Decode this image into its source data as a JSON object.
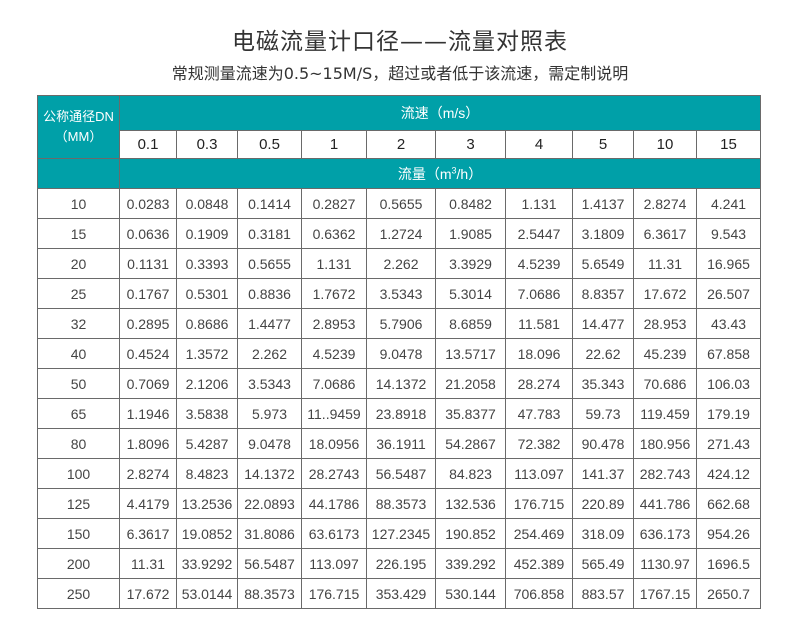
{
  "title": "电磁流量计口径——流量对照表",
  "subtitle": "常规测量流速为0.5~15M/S，超过或者低于该流速，需定制说明",
  "colors": {
    "header_bg": "#00a0a8",
    "header_text": "#ffffff",
    "border": "#6a6a6a"
  },
  "table": {
    "dn_header_line1": "公称通径DN",
    "dn_header_line2": "（MM）",
    "velocity_header": "流速（m/s）",
    "flow_header_prefix": "流量（m",
    "flow_header_sup": "3",
    "flow_header_suffix": "/h）",
    "velocities": [
      "0.1",
      "0.3",
      "0.5",
      "1",
      "2",
      "3",
      "4",
      "5",
      "10",
      "15"
    ],
    "rows": [
      {
        "dn": "10",
        "values": [
          "0.0283",
          "0.0848",
          "0.1414",
          "0.2827",
          "0.5655",
          "0.8482",
          "1.131",
          "1.4137",
          "2.8274",
          "4.241"
        ]
      },
      {
        "dn": "15",
        "values": [
          "0.0636",
          "0.1909",
          "0.3181",
          "0.6362",
          "1.2724",
          "1.9085",
          "2.5447",
          "3.1809",
          "6.3617",
          "9.543"
        ]
      },
      {
        "dn": "20",
        "values": [
          "0.1131",
          "0.3393",
          "0.5655",
          "1.131",
          "2.262",
          "3.3929",
          "4.5239",
          "5.6549",
          "11.31",
          "16.965"
        ]
      },
      {
        "dn": "25",
        "values": [
          "0.1767",
          "0.5301",
          "0.8836",
          "1.7672",
          "3.5343",
          "5.3014",
          "7.0686",
          "8.8357",
          "17.672",
          "26.507"
        ]
      },
      {
        "dn": "32",
        "values": [
          "0.2895",
          "0.8686",
          "1.4477",
          "2.8953",
          "5.7906",
          "8.6859",
          "11.581",
          "14.477",
          "28.953",
          "43.43"
        ]
      },
      {
        "dn": "40",
        "values": [
          "0.4524",
          "1.3572",
          "2.262",
          "4.5239",
          "9.0478",
          "13.5717",
          "18.096",
          "22.62",
          "45.239",
          "67.858"
        ]
      },
      {
        "dn": "50",
        "values": [
          "0.7069",
          "2.1206",
          "3.5343",
          "7.0686",
          "14.1372",
          "21.2058",
          "28.274",
          "35.343",
          "70.686",
          "106.03"
        ]
      },
      {
        "dn": "65",
        "values": [
          "1.1946",
          "3.5838",
          "5.973",
          "11..9459",
          "23.8918",
          "35.8377",
          "47.783",
          "59.73",
          "119.459",
          "179.19"
        ]
      },
      {
        "dn": "80",
        "values": [
          "1.8096",
          "5.4287",
          "9.0478",
          "18.0956",
          "36.1911",
          "54.2867",
          "72.382",
          "90.478",
          "180.956",
          "271.43"
        ]
      },
      {
        "dn": "100",
        "values": [
          "2.8274",
          "8.4823",
          "14.1372",
          "28.2743",
          "56.5487",
          "84.823",
          "113.097",
          "141.37",
          "282.743",
          "424.12"
        ]
      },
      {
        "dn": "125",
        "values": [
          "4.4179",
          "13.2536",
          "22.0893",
          "44.1786",
          "88.3573",
          "132.536",
          "176.715",
          "220.89",
          "441.786",
          "662.68"
        ]
      },
      {
        "dn": "150",
        "values": [
          "6.3617",
          "19.0852",
          "31.8086",
          "63.6173",
          "127.2345",
          "190.852",
          "254.469",
          "318.09",
          "636.173",
          "954.26"
        ]
      },
      {
        "dn": "200",
        "values": [
          "11.31",
          "33.9292",
          "56.5487",
          "113.097",
          "226.195",
          "339.292",
          "452.389",
          "565.49",
          "1130.97",
          "1696.5"
        ]
      },
      {
        "dn": "250",
        "values": [
          "17.672",
          "53.0144",
          "88.3573",
          "176.715",
          "353.429",
          "530.144",
          "706.858",
          "883.57",
          "1767.15",
          "2650.7"
        ]
      }
    ]
  }
}
